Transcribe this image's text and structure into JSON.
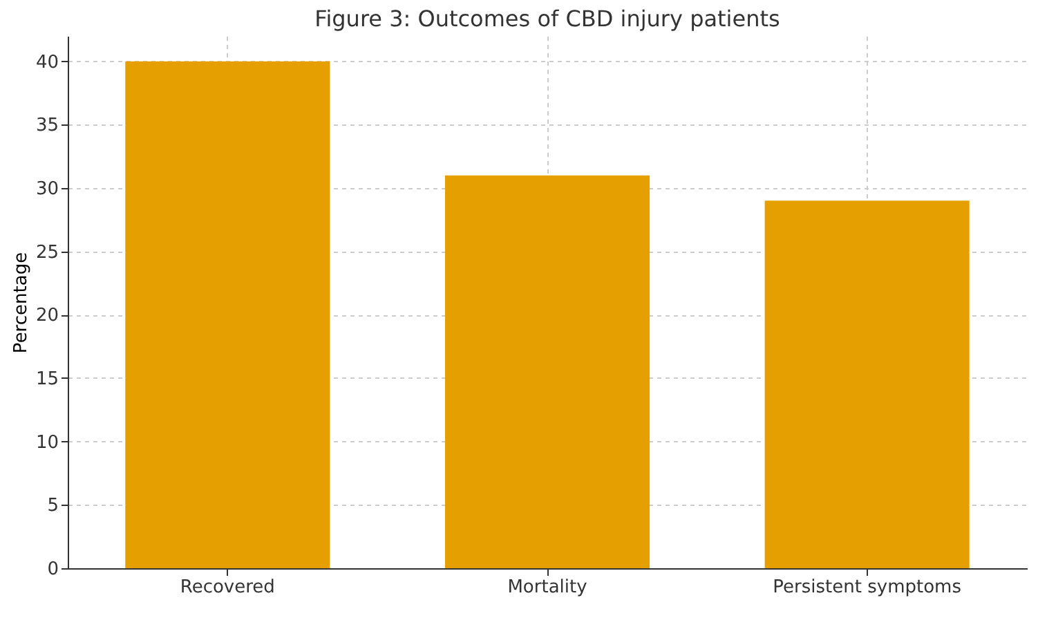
{
  "chart_data": {
    "type": "bar",
    "title": "Figure 3: Outcomes of CBD injury patients",
    "ylabel": "Percentage",
    "categories": [
      "Recovered",
      "Mortality",
      "Persistent symptoms"
    ],
    "values": [
      40,
      31,
      29
    ],
    "color": "#e5a000",
    "ylim": [
      0,
      42
    ],
    "yticks": [
      0,
      5,
      10,
      15,
      20,
      25,
      30,
      35,
      40
    ],
    "grid": true
  }
}
